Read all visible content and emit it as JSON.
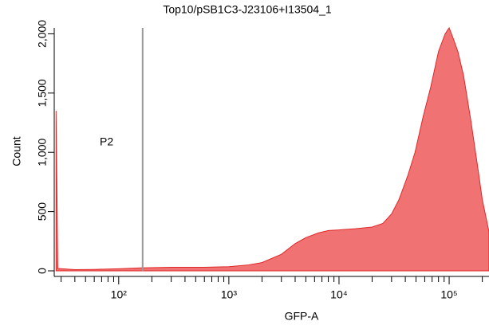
{
  "chart_data": {
    "type": "area",
    "title": "Top10/pSB1C3-J23106+I13504_1",
    "xlabel": "GFP-A",
    "ylabel": "Count",
    "x_log": true,
    "xlim": [
      26,
      230000
    ],
    "ylim": [
      0,
      2050
    ],
    "xticks": [
      {
        "value": 100,
        "label": "10²"
      },
      {
        "value": 1000,
        "label": "10³"
      },
      {
        "value": 10000,
        "label": "10⁴"
      },
      {
        "value": 100000,
        "label": "10⁵"
      }
    ],
    "xticks_minor": [
      30,
      40,
      50,
      60,
      70,
      80,
      90,
      200,
      300,
      400,
      500,
      600,
      700,
      800,
      900,
      2000,
      3000,
      4000,
      5000,
      6000,
      7000,
      8000,
      9000,
      20000,
      30000,
      40000,
      50000,
      60000,
      70000,
      80000,
      90000,
      200000
    ],
    "yticks": [
      0,
      500,
      {
        "value": 1000,
        "label": "1,000"
      },
      {
        "value": 1500,
        "label": "1,500"
      },
      {
        "value": 2000,
        "label": "2,000"
      }
    ],
    "gate": {
      "label": "P2",
      "x": 165
    },
    "color": "#f07272",
    "line_color": "#e02828",
    "x": [
      27,
      28,
      40,
      60,
      100,
      160,
      300,
      600,
      1000,
      1500,
      2000,
      3000,
      4000,
      5000,
      6500,
      8000,
      10000,
      14000,
      20000,
      25000,
      30000,
      35000,
      42000,
      49000,
      58000,
      68000,
      80000,
      92000,
      100000,
      110000,
      120000,
      135000,
      157000,
      180000,
      200000,
      230000
    ],
    "values": [
      1350,
      20,
      10,
      12,
      18,
      25,
      30,
      30,
      35,
      50,
      70,
      140,
      230,
      280,
      320,
      340,
      345,
      355,
      370,
      400,
      480,
      600,
      800,
      1000,
      1300,
      1550,
      1850,
      2000,
      2050,
      1950,
      1850,
      1650,
      1275,
      900,
      600,
      330
    ]
  }
}
